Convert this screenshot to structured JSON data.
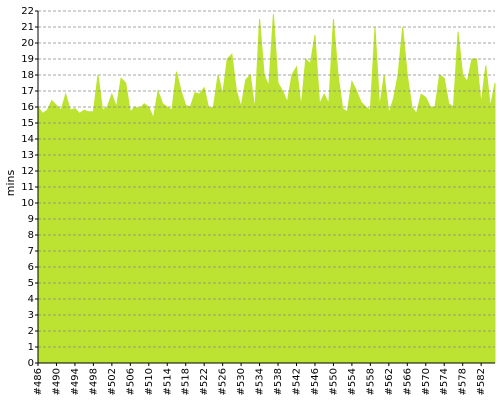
{
  "chart_data": {
    "type": "area",
    "y_label": "mins",
    "categories": [
      "#486",
      null,
      null,
      null,
      "#490",
      null,
      null,
      null,
      "#494",
      null,
      null,
      null,
      "#498",
      null,
      null,
      null,
      "#502",
      null,
      null,
      null,
      "#506",
      null,
      null,
      null,
      "#510",
      null,
      null,
      null,
      "#514",
      null,
      null,
      null,
      "#518",
      null,
      null,
      null,
      "#522",
      null,
      null,
      null,
      "#526",
      null,
      null,
      null,
      "#530",
      null,
      null,
      null,
      "#534",
      null,
      null,
      null,
      "#538",
      null,
      null,
      null,
      "#542",
      null,
      null,
      null,
      "#546",
      null,
      null,
      null,
      "#550",
      null,
      null,
      null,
      "#554",
      null,
      null,
      null,
      "#558",
      null,
      null,
      null,
      "#562",
      null,
      null,
      null,
      "#566",
      null,
      null,
      null,
      "#570",
      null,
      null,
      null,
      "#574",
      null,
      null,
      null,
      "#578",
      null,
      null,
      null,
      "#582",
      null,
      null,
      null
    ],
    "values": [
      16.0,
      15.6,
      15.8,
      16.4,
      16.1,
      15.8,
      16.8,
      15.8,
      15.9,
      15.6,
      15.8,
      15.7,
      15.7,
      18.0,
      15.8,
      16.0,
      16.8,
      16.0,
      17.8,
      17.5,
      15.7,
      16.0,
      15.9,
      16.2,
      16.0,
      15.3,
      17.0,
      16.2,
      16.0,
      15.8,
      18.2,
      17.0,
      16.1,
      16.0,
      16.9,
      16.8,
      17.2,
      15.9,
      16.0,
      18.0,
      16.8,
      19.0,
      19.3,
      17.0,
      16.0,
      17.7,
      18.0,
      15.8,
      21.5,
      18.0,
      17.3,
      21.8,
      17.5,
      17.0,
      16.3,
      18.0,
      18.5,
      16.0,
      19.0,
      18.7,
      20.5,
      16.2,
      16.8,
      16.2,
      21.5,
      18.0,
      15.9,
      15.7,
      17.6,
      17.0,
      16.3,
      16.0,
      15.8,
      21.0,
      16.0,
      18.0,
      15.6,
      16.5,
      18.0,
      21.0,
      18.0,
      16.0,
      15.6,
      16.8,
      16.6,
      16.0,
      16.0,
      18.0,
      17.8,
      16.2,
      16.0,
      20.7,
      18.0,
      17.6,
      19.0,
      19.0,
      16.2,
      18.6,
      16.0,
      17.5
    ],
    "color": "#bce331",
    "ylim": [
      0,
      22
    ],
    "yticks": [
      0,
      1,
      2,
      3,
      4,
      5,
      6,
      7,
      8,
      9,
      10,
      11,
      12,
      13,
      14,
      15,
      16,
      17,
      18,
      19,
      20,
      21,
      22
    ],
    "grid": true
  }
}
